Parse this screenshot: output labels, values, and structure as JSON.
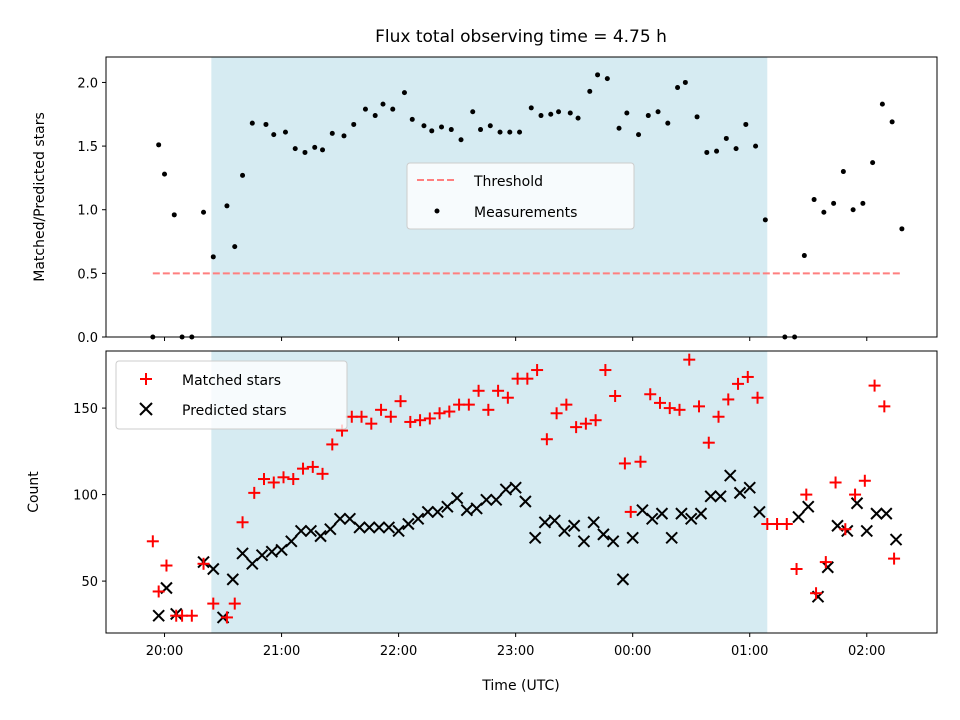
{
  "chart_data": [
    {
      "type": "scatter",
      "title": "Flux total observing time = 4.75 h",
      "ylabel": "Matched/Predicted stars",
      "xlabel": "",
      "xlim": [
        "19:30",
        "02:36"
      ],
      "ylim": [
        0,
        2.2
      ],
      "y_ticks": [
        0.0,
        0.5,
        1.0,
        1.5,
        2.0
      ],
      "y_tick_labels": [
        "0.0",
        "0.5",
        "1.0",
        "1.5",
        "2.0"
      ],
      "grid": false,
      "legend_position": "center",
      "highlight_span": [
        "20:24",
        "01:09"
      ],
      "threshold": {
        "name": "Threshold",
        "value": 0.5,
        "x_range": [
          "19:54",
          "02:18"
        ],
        "color": "#ff7f7f",
        "style": "dashed"
      },
      "series": [
        {
          "name": "Measurements",
          "color": "#000000",
          "marker": "dot",
          "points": [
            [
              "19:54",
              0.0
            ],
            [
              "19:57",
              1.51
            ],
            [
              "20:00",
              1.28
            ],
            [
              "20:05",
              0.96
            ],
            [
              "20:09",
              0.0
            ],
            [
              "20:14",
              0.0
            ],
            [
              "20:20",
              0.98
            ],
            [
              "20:25",
              0.63
            ],
            [
              "20:32",
              1.03
            ],
            [
              "20:36",
              0.71
            ],
            [
              "20:40",
              1.27
            ],
            [
              "20:45",
              1.68
            ],
            [
              "20:52",
              1.67
            ],
            [
              "20:56",
              1.59
            ],
            [
              "21:02",
              1.61
            ],
            [
              "21:07",
              1.48
            ],
            [
              "21:12",
              1.45
            ],
            [
              "21:17",
              1.49
            ],
            [
              "21:21",
              1.47
            ],
            [
              "21:26",
              1.6
            ],
            [
              "21:32",
              1.58
            ],
            [
              "21:37",
              1.67
            ],
            [
              "21:43",
              1.79
            ],
            [
              "21:48",
              1.74
            ],
            [
              "21:52",
              1.83
            ],
            [
              "21:57",
              1.79
            ],
            [
              "22:03",
              1.92
            ],
            [
              "22:07",
              1.71
            ],
            [
              "22:13",
              1.66
            ],
            [
              "22:17",
              1.62
            ],
            [
              "22:22",
              1.65
            ],
            [
              "22:27",
              1.63
            ],
            [
              "22:32",
              1.55
            ],
            [
              "22:38",
              1.77
            ],
            [
              "22:42",
              1.63
            ],
            [
              "22:47",
              1.66
            ],
            [
              "22:52",
              1.61
            ],
            [
              "22:57",
              1.61
            ],
            [
              "23:02",
              1.61
            ],
            [
              "23:08",
              1.8
            ],
            [
              "23:13",
              1.74
            ],
            [
              "23:18",
              1.75
            ],
            [
              "23:22",
              1.77
            ],
            [
              "23:28",
              1.76
            ],
            [
              "23:32",
              1.72
            ],
            [
              "23:38",
              1.93
            ],
            [
              "23:42",
              2.06
            ],
            [
              "23:47",
              2.03
            ],
            [
              "23:53",
              1.64
            ],
            [
              "23:57",
              1.76
            ],
            [
              "00:03",
              1.59
            ],
            [
              "00:08",
              1.74
            ],
            [
              "00:13",
              1.77
            ],
            [
              "00:18",
              1.68
            ],
            [
              "00:23",
              1.96
            ],
            [
              "00:27",
              2.0
            ],
            [
              "00:33",
              1.73
            ],
            [
              "00:38",
              1.45
            ],
            [
              "00:43",
              1.46
            ],
            [
              "00:48",
              1.56
            ],
            [
              "00:53",
              1.48
            ],
            [
              "00:58",
              1.67
            ],
            [
              "01:03",
              1.5
            ],
            [
              "01:08",
              0.92
            ],
            [
              "01:18",
              0.0
            ],
            [
              "01:23",
              0.0
            ],
            [
              "01:28",
              0.64
            ],
            [
              "01:33",
              1.08
            ],
            [
              "01:38",
              0.98
            ],
            [
              "01:43",
              1.05
            ],
            [
              "01:48",
              1.3
            ],
            [
              "01:53",
              1.0
            ],
            [
              "01:58",
              1.05
            ],
            [
              "02:03",
              1.37
            ],
            [
              "02:08",
              1.83
            ],
            [
              "02:13",
              1.69
            ],
            [
              "02:18",
              0.85
            ]
          ]
        }
      ]
    },
    {
      "type": "scatter",
      "title": "",
      "ylabel": "Count",
      "xlabel": "Time (UTC)",
      "xlim": [
        "19:30",
        "02:36"
      ],
      "ylim": [
        20,
        183
      ],
      "y_ticks": [
        50,
        100,
        150
      ],
      "y_tick_labels": [
        "50",
        "100",
        "150"
      ],
      "x_ticks": [
        "20:00",
        "21:00",
        "22:00",
        "23:00",
        "00:00",
        "01:00",
        "02:00"
      ],
      "x_tick_labels": [
        "20:00",
        "21:00",
        "22:00",
        "23:00",
        "00:00",
        "01:00",
        "02:00"
      ],
      "grid": false,
      "legend_position": "upper left",
      "highlight_span": [
        "20:24",
        "01:09"
      ],
      "series": [
        {
          "name": "Matched stars",
          "color": "#ff0000",
          "marker": "plus",
          "points": [
            [
              "19:54",
              73
            ],
            [
              "19:57",
              44
            ],
            [
              "20:01",
              59
            ],
            [
              "20:06",
              30
            ],
            [
              "20:09",
              30
            ],
            [
              "20:14",
              30
            ],
            [
              "20:20",
              60
            ],
            [
              "20:25",
              37
            ],
            [
              "20:32",
              29
            ],
            [
              "20:36",
              37
            ],
            [
              "20:40",
              84
            ],
            [
              "20:46",
              101
            ],
            [
              "20:51",
              109
            ],
            [
              "20:56",
              107
            ],
            [
              "21:01",
              110
            ],
            [
              "21:06",
              109
            ],
            [
              "21:11",
              115
            ],
            [
              "21:16",
              116
            ],
            [
              "21:21",
              112
            ],
            [
              "21:26",
              129
            ],
            [
              "21:31",
              137
            ],
            [
              "21:36",
              145
            ],
            [
              "21:41",
              145
            ],
            [
              "21:46",
              141
            ],
            [
              "21:51",
              149
            ],
            [
              "21:56",
              145
            ],
            [
              "22:01",
              154
            ],
            [
              "22:06",
              142
            ],
            [
              "22:11",
              143
            ],
            [
              "22:16",
              144
            ],
            [
              "22:21",
              147
            ],
            [
              "22:26",
              148
            ],
            [
              "22:31",
              152
            ],
            [
              "22:36",
              152
            ],
            [
              "22:41",
              160
            ],
            [
              "22:46",
              149
            ],
            [
              "22:51",
              160
            ],
            [
              "22:56",
              156
            ],
            [
              "23:01",
              167
            ],
            [
              "23:06",
              167
            ],
            [
              "23:11",
              172
            ],
            [
              "23:16",
              132
            ],
            [
              "23:21",
              147
            ],
            [
              "23:26",
              152
            ],
            [
              "23:31",
              139
            ],
            [
              "23:36",
              141
            ],
            [
              "23:41",
              143
            ],
            [
              "23:46",
              172
            ],
            [
              "23:51",
              157
            ],
            [
              "23:56",
              118
            ],
            [
              "23:59",
              90
            ],
            [
              "00:04",
              119
            ],
            [
              "00:09",
              158
            ],
            [
              "00:14",
              153
            ],
            [
              "00:19",
              150
            ],
            [
              "00:24",
              149
            ],
            [
              "00:29",
              178
            ],
            [
              "00:34",
              151
            ],
            [
              "00:39",
              130
            ],
            [
              "00:44",
              145
            ],
            [
              "00:49",
              155
            ],
            [
              "00:54",
              164
            ],
            [
              "00:59",
              168
            ],
            [
              "01:04",
              156
            ],
            [
              "01:09",
              83
            ],
            [
              "01:14",
              83
            ],
            [
              "01:19",
              83
            ],
            [
              "01:24",
              57
            ],
            [
              "01:29",
              100
            ],
            [
              "01:34",
              43
            ],
            [
              "01:39",
              61
            ],
            [
              "01:44",
              107
            ],
            [
              "01:49",
              80
            ],
            [
              "01:54",
              100
            ],
            [
              "01:59",
              108
            ],
            [
              "02:04",
              163
            ],
            [
              "02:09",
              151
            ],
            [
              "02:14",
              63
            ]
          ]
        },
        {
          "name": "Predicted stars",
          "color": "#000000",
          "marker": "x",
          "points": [
            [
              "19:57",
              30
            ],
            [
              "20:01",
              46
            ],
            [
              "20:06",
              31
            ],
            [
              "20:20",
              61
            ],
            [
              "20:25",
              57
            ],
            [
              "20:30",
              29
            ],
            [
              "20:35",
              51
            ],
            [
              "20:40",
              66
            ],
            [
              "20:45",
              60
            ],
            [
              "20:50",
              65
            ],
            [
              "20:55",
              67
            ],
            [
              "21:00",
              68
            ],
            [
              "21:05",
              73
            ],
            [
              "21:10",
              79
            ],
            [
              "21:15",
              79
            ],
            [
              "21:20",
              76
            ],
            [
              "21:25",
              80
            ],
            [
              "21:30",
              86
            ],
            [
              "21:35",
              86
            ],
            [
              "21:40",
              81
            ],
            [
              "21:45",
              81
            ],
            [
              "21:50",
              81
            ],
            [
              "21:55",
              81
            ],
            [
              "22:00",
              79
            ],
            [
              "22:05",
              83
            ],
            [
              "22:10",
              86
            ],
            [
              "22:15",
              90
            ],
            [
              "22:20",
              90
            ],
            [
              "22:25",
              93
            ],
            [
              "22:30",
              98
            ],
            [
              "22:35",
              91
            ],
            [
              "22:40",
              92
            ],
            [
              "22:45",
              97
            ],
            [
              "22:50",
              97
            ],
            [
              "22:55",
              103
            ],
            [
              "23:00",
              104
            ],
            [
              "23:05",
              96
            ],
            [
              "23:10",
              75
            ],
            [
              "23:15",
              84
            ],
            [
              "23:20",
              85
            ],
            [
              "23:25",
              79
            ],
            [
              "23:30",
              82
            ],
            [
              "23:35",
              73
            ],
            [
              "23:40",
              84
            ],
            [
              "23:45",
              77
            ],
            [
              "23:50",
              73
            ],
            [
              "23:55",
              51
            ],
            [
              "00:00",
              75
            ],
            [
              "00:05",
              91
            ],
            [
              "00:10",
              86
            ],
            [
              "00:15",
              89
            ],
            [
              "00:20",
              75
            ],
            [
              "00:25",
              89
            ],
            [
              "00:30",
              86
            ],
            [
              "00:35",
              89
            ],
            [
              "00:40",
              99
            ],
            [
              "00:45",
              99
            ],
            [
              "00:50",
              111
            ],
            [
              "00:55",
              101
            ],
            [
              "01:00",
              104
            ],
            [
              "01:05",
              90
            ],
            [
              "01:25",
              87
            ],
            [
              "01:30",
              93
            ],
            [
              "01:35",
              41
            ],
            [
              "01:40",
              58
            ],
            [
              "01:45",
              82
            ],
            [
              "01:50",
              79
            ],
            [
              "01:55",
              95
            ],
            [
              "02:00",
              79
            ],
            [
              "02:05",
              89
            ],
            [
              "02:10",
              89
            ],
            [
              "02:15",
              74
            ]
          ]
        }
      ]
    }
  ],
  "colors": {
    "highlight": "#add8e6",
    "matched": "#ff0000",
    "predicted": "#000000",
    "threshold": "#ff7f7f",
    "measurements": "#000000"
  }
}
